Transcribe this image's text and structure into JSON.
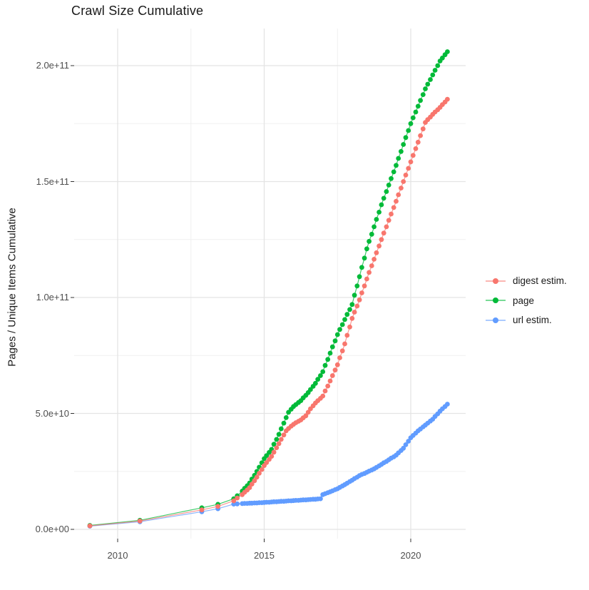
{
  "chart_data": {
    "type": "scatter",
    "line_connected": true,
    "title": "Crawl Size Cumulative",
    "xlabel": "",
    "ylabel": "Pages / Unique Items Cumulative",
    "grid": true,
    "legend_position": "right",
    "value_unit": "billions (1e9)",
    "xlim": [
      2008.4,
      2021.9
    ],
    "ylim_billions": [
      -6,
      216
    ],
    "x_ticks": {
      "major": [
        2010,
        2015,
        2020
      ],
      "minor": [
        2012.5,
        2017.5
      ],
      "labels": [
        "2010",
        "2015",
        "2020"
      ]
    },
    "y_ticks": {
      "major_billions": [
        0,
        50,
        100,
        150,
        200
      ],
      "minor_billions": [
        25,
        75,
        125,
        175
      ],
      "labels": [
        "0.0e+00",
        "5.0e+10",
        "1.0e+11",
        "1.5e+11",
        "2.0e+11"
      ]
    },
    "series": [
      {
        "name": "digest estim.",
        "color": "#F8766D",
        "points": [
          [
            2009.05,
            1.5
          ],
          [
            2010.76,
            3.6
          ],
          [
            2012.87,
            8.4
          ],
          [
            2013.42,
            9.9
          ],
          [
            2013.96,
            12.3
          ],
          [
            2014.08,
            13.5
          ],
          [
            2014.25,
            15
          ],
          [
            2014.33,
            16
          ],
          [
            2014.42,
            17
          ],
          [
            2014.5,
            18
          ],
          [
            2014.58,
            19.5
          ],
          [
            2014.67,
            21
          ],
          [
            2014.75,
            22.5
          ],
          [
            2014.83,
            24.2
          ],
          [
            2014.92,
            25.8
          ],
          [
            2015,
            27.5
          ],
          [
            2015.08,
            28.8
          ],
          [
            2015.17,
            30.2
          ],
          [
            2015.25,
            31.5
          ],
          [
            2015.33,
            33.3
          ],
          [
            2015.42,
            35.2
          ],
          [
            2015.5,
            37
          ],
          [
            2015.58,
            38.8
          ],
          [
            2015.67,
            40.7
          ],
          [
            2015.75,
            42.5
          ],
          [
            2015.83,
            43.5
          ],
          [
            2015.92,
            44.5
          ],
          [
            2016,
            45.3
          ],
          [
            2016.08,
            46
          ],
          [
            2016.17,
            46.6
          ],
          [
            2016.25,
            47.2
          ],
          [
            2016.33,
            48.1
          ],
          [
            2016.42,
            49
          ],
          [
            2016.5,
            50.5
          ],
          [
            2016.58,
            52
          ],
          [
            2016.67,
            53.3
          ],
          [
            2016.75,
            54.5
          ],
          [
            2016.83,
            55.5
          ],
          [
            2016.92,
            56.5
          ],
          [
            2017,
            57.5
          ],
          [
            2017.08,
            59.7
          ],
          [
            2017.17,
            61.8
          ],
          [
            2017.25,
            64
          ],
          [
            2017.33,
            66.3
          ],
          [
            2017.42,
            68.7
          ],
          [
            2017.5,
            71
          ],
          [
            2017.58,
            74
          ],
          [
            2017.67,
            77
          ],
          [
            2017.75,
            80
          ],
          [
            2017.83,
            83.7
          ],
          [
            2017.92,
            87.3
          ],
          [
            2018,
            91
          ],
          [
            2018.08,
            93.7
          ],
          [
            2018.17,
            96.3
          ],
          [
            2018.25,
            99
          ],
          [
            2018.33,
            102
          ],
          [
            2018.42,
            105
          ],
          [
            2018.5,
            108
          ],
          [
            2018.58,
            110.8
          ],
          [
            2018.67,
            113.7
          ],
          [
            2018.75,
            116.5
          ],
          [
            2018.83,
            119.3
          ],
          [
            2018.92,
            122.2
          ],
          [
            2019,
            125
          ],
          [
            2019.08,
            127.8
          ],
          [
            2019.17,
            130.5
          ],
          [
            2019.25,
            133.3
          ],
          [
            2019.33,
            136
          ],
          [
            2019.42,
            138.8
          ],
          [
            2019.5,
            141.5
          ],
          [
            2019.58,
            144.3
          ],
          [
            2019.67,
            147.2
          ],
          [
            2019.75,
            150
          ],
          [
            2019.83,
            152.8
          ],
          [
            2019.92,
            155.7
          ],
          [
            2020,
            158.5
          ],
          [
            2020.08,
            161.3
          ],
          [
            2020.17,
            164.2
          ],
          [
            2020.25,
            167
          ],
          [
            2020.33,
            169.8
          ],
          [
            2020.42,
            172.7
          ],
          [
            2020.5,
            175.5
          ],
          [
            2020.58,
            176.7
          ],
          [
            2020.67,
            177.8
          ],
          [
            2020.75,
            179
          ],
          [
            2020.83,
            180
          ],
          [
            2020.92,
            181
          ],
          [
            2021,
            182
          ],
          [
            2021.08,
            183.2
          ],
          [
            2021.17,
            184.3
          ],
          [
            2021.25,
            185.5
          ]
        ]
      },
      {
        "name": "page",
        "color": "#00BA38",
        "points": [
          [
            2009.05,
            1.7
          ],
          [
            2010.76,
            3.9
          ],
          [
            2012.87,
            9.3
          ],
          [
            2013.42,
            10.8
          ],
          [
            2013.96,
            13.2
          ],
          [
            2014.08,
            14.5
          ],
          [
            2014.25,
            16.5
          ],
          [
            2014.33,
            17.7
          ],
          [
            2014.42,
            18.8
          ],
          [
            2014.5,
            20
          ],
          [
            2014.58,
            21.7
          ],
          [
            2014.67,
            23.3
          ],
          [
            2014.75,
            25
          ],
          [
            2014.83,
            26.8
          ],
          [
            2014.92,
            28.7
          ],
          [
            2015,
            30.5
          ],
          [
            2015.08,
            31.8
          ],
          [
            2015.17,
            33.2
          ],
          [
            2015.25,
            34.5
          ],
          [
            2015.33,
            36.7
          ],
          [
            2015.42,
            38.8
          ],
          [
            2015.5,
            41
          ],
          [
            2015.58,
            43.4
          ],
          [
            2015.67,
            45.8
          ],
          [
            2015.75,
            48.2
          ],
          [
            2015.83,
            50.5
          ],
          [
            2015.92,
            51.8
          ],
          [
            2016,
            53
          ],
          [
            2016.08,
            53.8
          ],
          [
            2016.17,
            54.7
          ],
          [
            2016.25,
            55.5
          ],
          [
            2016.33,
            56.7
          ],
          [
            2016.42,
            57.8
          ],
          [
            2016.5,
            59
          ],
          [
            2016.58,
            60.3
          ],
          [
            2016.67,
            61.7
          ],
          [
            2016.75,
            63
          ],
          [
            2016.83,
            64.7
          ],
          [
            2016.92,
            66.3
          ],
          [
            2017,
            68
          ],
          [
            2017.08,
            70.7
          ],
          [
            2017.17,
            73.3
          ],
          [
            2017.25,
            76
          ],
          [
            2017.33,
            78.7
          ],
          [
            2017.42,
            81.3
          ],
          [
            2017.5,
            84
          ],
          [
            2017.58,
            86.2
          ],
          [
            2017.67,
            88.3
          ],
          [
            2017.75,
            90.5
          ],
          [
            2017.83,
            92.7
          ],
          [
            2017.92,
            94.8
          ],
          [
            2018,
            97
          ],
          [
            2018.08,
            101
          ],
          [
            2018.17,
            105
          ],
          [
            2018.25,
            109
          ],
          [
            2018.33,
            113
          ],
          [
            2018.42,
            117
          ],
          [
            2018.5,
            121
          ],
          [
            2018.58,
            124.2
          ],
          [
            2018.67,
            127.3
          ],
          [
            2018.75,
            130.5
          ],
          [
            2018.83,
            133.7
          ],
          [
            2018.92,
            136.8
          ],
          [
            2019,
            140
          ],
          [
            2019.08,
            142.8
          ],
          [
            2019.17,
            145.7
          ],
          [
            2019.25,
            148.5
          ],
          [
            2019.33,
            151.3
          ],
          [
            2019.42,
            154.2
          ],
          [
            2019.5,
            157
          ],
          [
            2019.58,
            160
          ],
          [
            2019.67,
            163
          ],
          [
            2019.75,
            166
          ],
          [
            2019.83,
            169
          ],
          [
            2019.92,
            172
          ],
          [
            2020,
            175
          ],
          [
            2020.08,
            177.5
          ],
          [
            2020.17,
            180
          ],
          [
            2020.25,
            182.5
          ],
          [
            2020.33,
            185
          ],
          [
            2020.42,
            187.5
          ],
          [
            2020.5,
            190
          ],
          [
            2020.58,
            192
          ],
          [
            2020.67,
            194
          ],
          [
            2020.75,
            196
          ],
          [
            2020.83,
            198
          ],
          [
            2020.92,
            200
          ],
          [
            2021,
            202
          ],
          [
            2021.08,
            203.3
          ],
          [
            2021.17,
            204.7
          ],
          [
            2021.25,
            206
          ]
        ]
      },
      {
        "name": "url estim.",
        "color": "#619CFF",
        "points": [
          [
            2009.05,
            1.4
          ],
          [
            2010.76,
            3.3
          ],
          [
            2012.87,
            7.6
          ],
          [
            2013.42,
            8.9
          ],
          [
            2013.96,
            10.9
          ],
          [
            2014.08,
            11
          ],
          [
            2014.25,
            11.1
          ],
          [
            2014.33,
            11.2
          ],
          [
            2014.42,
            11.2
          ],
          [
            2014.5,
            11.3
          ],
          [
            2014.58,
            11.3
          ],
          [
            2014.67,
            11.4
          ],
          [
            2014.75,
            11.4
          ],
          [
            2014.83,
            11.5
          ],
          [
            2014.92,
            11.5
          ],
          [
            2015,
            11.6
          ],
          [
            2015.08,
            11.7
          ],
          [
            2015.17,
            11.7
          ],
          [
            2015.25,
            11.8
          ],
          [
            2015.33,
            11.9
          ],
          [
            2015.42,
            11.9
          ],
          [
            2015.5,
            12
          ],
          [
            2015.58,
            12.1
          ],
          [
            2015.67,
            12.1
          ],
          [
            2015.75,
            12.2
          ],
          [
            2015.83,
            12.3
          ],
          [
            2015.92,
            12.3
          ],
          [
            2016,
            12.4
          ],
          [
            2016.08,
            12.5
          ],
          [
            2016.17,
            12.5
          ],
          [
            2016.25,
            12.6
          ],
          [
            2016.33,
            12.7
          ],
          [
            2016.42,
            12.7
          ],
          [
            2016.5,
            12.8
          ],
          [
            2016.58,
            12.9
          ],
          [
            2016.67,
            13
          ],
          [
            2016.75,
            13
          ],
          [
            2016.83,
            13.1
          ],
          [
            2016.92,
            13.2
          ],
          [
            2017,
            15
          ],
          [
            2017.08,
            15.4
          ],
          [
            2017.17,
            15.8
          ],
          [
            2017.25,
            16.2
          ],
          [
            2017.33,
            16.6
          ],
          [
            2017.42,
            17.1
          ],
          [
            2017.5,
            17.5
          ],
          [
            2017.58,
            18.1
          ],
          [
            2017.67,
            18.7
          ],
          [
            2017.75,
            19.3
          ],
          [
            2017.83,
            19.9
          ],
          [
            2017.92,
            20.6
          ],
          [
            2018,
            21.2
          ],
          [
            2018.08,
            21.9
          ],
          [
            2018.17,
            22.5
          ],
          [
            2018.25,
            23.2
          ],
          [
            2018.33,
            23.7
          ],
          [
            2018.42,
            24.1
          ],
          [
            2018.5,
            24.6
          ],
          [
            2018.58,
            25.1
          ],
          [
            2018.67,
            25.6
          ],
          [
            2018.75,
            26.1
          ],
          [
            2018.83,
            26.7
          ],
          [
            2018.92,
            27.4
          ],
          [
            2019,
            28
          ],
          [
            2019.08,
            28.7
          ],
          [
            2019.17,
            29.3
          ],
          [
            2019.25,
            30
          ],
          [
            2019.33,
            30.7
          ],
          [
            2019.42,
            31.3
          ],
          [
            2019.5,
            32
          ],
          [
            2019.58,
            33
          ],
          [
            2019.67,
            34
          ],
          [
            2019.75,
            35
          ],
          [
            2019.83,
            36.5
          ],
          [
            2019.92,
            38
          ],
          [
            2020,
            39.5
          ],
          [
            2020.08,
            40.5
          ],
          [
            2020.17,
            41.5
          ],
          [
            2020.25,
            42.5
          ],
          [
            2020.33,
            43.3
          ],
          [
            2020.42,
            44.2
          ],
          [
            2020.5,
            45
          ],
          [
            2020.58,
            45.8
          ],
          [
            2020.67,
            46.7
          ],
          [
            2020.75,
            47.5
          ],
          [
            2020.83,
            48.7
          ],
          [
            2020.92,
            49.8
          ],
          [
            2021,
            51
          ],
          [
            2021.08,
            52
          ],
          [
            2021.17,
            53
          ],
          [
            2021.25,
            54
          ]
        ]
      }
    ],
    "legend": {
      "items": [
        {
          "label": "digest estim.",
          "color": "#F8766D"
        },
        {
          "label": "page",
          "color": "#00BA38"
        },
        {
          "label": "url estim.",
          "color": "#619CFF"
        }
      ]
    }
  },
  "style_colors": {
    "grid_major": "#e4e4e4",
    "grid_minor": "#f0f0f0",
    "axis_tick": "#333333",
    "axis_text": "#4d4d4d",
    "text": "#1a1a1a",
    "background": "#ffffff"
  }
}
